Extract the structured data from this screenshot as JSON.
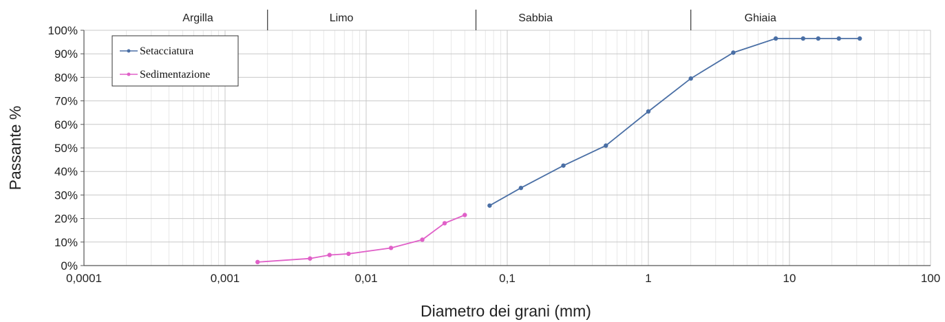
{
  "chart_data": {
    "type": "scatter",
    "title": "",
    "xlabel": "Diametro dei grani (mm)",
    "ylabel": "Passante %",
    "x_scale": "log",
    "xlim": [
      0.0001,
      100
    ],
    "ylim": [
      0,
      100
    ],
    "grid": true,
    "legend_position": "top-left",
    "x_tick_labels": [
      "0,0001",
      "0,001",
      "0,01",
      "0,1",
      "1",
      "10",
      "100"
    ],
    "y_tick_labels": [
      "0%",
      "10%",
      "20%",
      "30%",
      "40%",
      "50%",
      "60%",
      "70%",
      "80%",
      "90%",
      "100%"
    ],
    "zones": [
      {
        "label": "Argilla"
      },
      {
        "label": "Limo"
      },
      {
        "label": "Sabbia"
      },
      {
        "label": "Ghiaia"
      }
    ],
    "zone_boundaries": [
      0.002,
      0.06,
      2
    ],
    "series": [
      {
        "name": "Setacciatura",
        "color": "#4a6fa5",
        "points": [
          {
            "x": 0.075,
            "y": 25.5
          },
          {
            "x": 0.125,
            "y": 33
          },
          {
            "x": 0.25,
            "y": 42.5
          },
          {
            "x": 0.5,
            "y": 51
          },
          {
            "x": 1,
            "y": 65.5
          },
          {
            "x": 2,
            "y": 79.5
          },
          {
            "x": 4,
            "y": 90.5
          },
          {
            "x": 8,
            "y": 96.5
          },
          {
            "x": 12.5,
            "y": 96.5
          },
          {
            "x": 16,
            "y": 96.5
          },
          {
            "x": 22.4,
            "y": 96.5
          },
          {
            "x": 31.5,
            "y": 96.5
          }
        ]
      },
      {
        "name": "Sedimentazione",
        "color": "#e060c8",
        "points": [
          {
            "x": 0.0017,
            "y": 1.5
          },
          {
            "x": 0.004,
            "y": 3
          },
          {
            "x": 0.0055,
            "y": 4.5
          },
          {
            "x": 0.0075,
            "y": 5
          },
          {
            "x": 0.015,
            "y": 7.5
          },
          {
            "x": 0.025,
            "y": 11
          },
          {
            "x": 0.036,
            "y": 18
          },
          {
            "x": 0.05,
            "y": 21.5
          }
        ]
      }
    ]
  }
}
